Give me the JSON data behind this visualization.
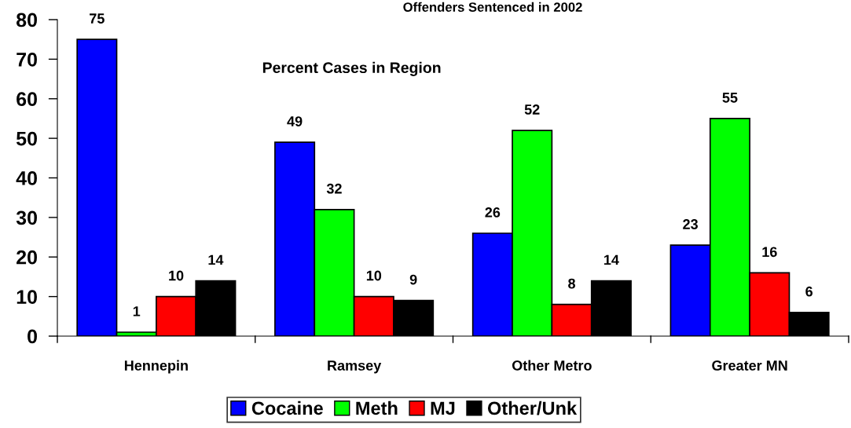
{
  "chart_data": {
    "type": "bar",
    "title": "Offenders Sentenced in 2002",
    "annotations": [
      "Percent Cases in Region"
    ],
    "categories": [
      "Hennepin",
      "Ramsey",
      "Other Metro",
      "Greater MN"
    ],
    "series": [
      {
        "name": "Cocaine",
        "color": "#0000ff",
        "values": [
          75,
          49,
          26,
          23
        ]
      },
      {
        "name": "Meth",
        "color": "#00ff00",
        "values": [
          1,
          32,
          52,
          55
        ]
      },
      {
        "name": "MJ",
        "color": "#ff0000",
        "values": [
          10,
          10,
          8,
          16
        ]
      },
      {
        "name": "Other/Unk",
        "color": "#000000",
        "values": [
          14,
          9,
          14,
          6
        ]
      }
    ],
    "ylim": [
      0,
      80
    ],
    "yticks": [
      0,
      10,
      20,
      30,
      40,
      50,
      60,
      70,
      80
    ],
    "grid": false,
    "legend": "bottom",
    "data_labels": true
  }
}
